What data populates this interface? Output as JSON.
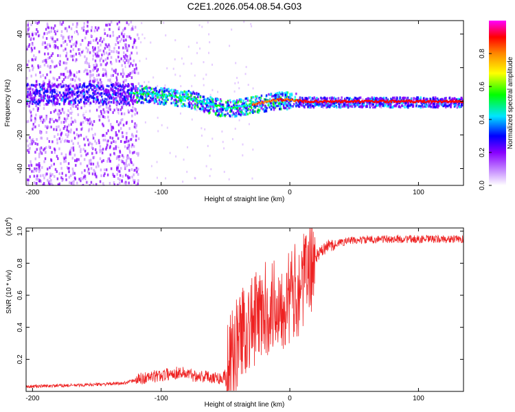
{
  "page": {
    "title": "C2E1.2026.054.08.54.G03"
  },
  "chart_data": [
    {
      "type": "heatmap",
      "title": "C2E1.2026.054.08.54.G03",
      "xlabel": "Height of straight line (km)",
      "ylabel": "Frequency (Hz)",
      "xlim": [
        -205,
        135
      ],
      "ylim": [
        -50,
        48
      ],
      "x_ticks": [
        -200,
        -100,
        0,
        100
      ],
      "y_ticks": [
        -40,
        -20,
        0,
        20,
        40
      ],
      "colorbar": {
        "label": "Normalized spectral amplitude",
        "range": [
          0,
          1
        ],
        "ticks": [
          0.0,
          0.2,
          0.4,
          0.6,
          0.8
        ],
        "colormap": [
          "#ffffff",
          "#cc99ff",
          "#8800ff",
          "#0000ff",
          "#00e5ff",
          "#00ff00",
          "#ffff00",
          "#ff8800",
          "#ff0000",
          "#ff00ff"
        ]
      },
      "frequency_trend": [
        {
          "x": -205,
          "f": 5
        },
        {
          "x": -150,
          "f": 5
        },
        {
          "x": -120,
          "f": 5
        },
        {
          "x": -100,
          "f": 4
        },
        {
          "x": -80,
          "f": 2
        },
        {
          "x": -60,
          "f": -2
        },
        {
          "x": -50,
          "f": -4
        },
        {
          "x": -40,
          "f": -3
        },
        {
          "x": -25,
          "f": -1
        },
        {
          "x": -10,
          "f": 1
        },
        {
          "x": 0,
          "f": 1
        },
        {
          "x": 10,
          "f": 0
        },
        {
          "x": 135,
          "f": 0
        }
      ]
    },
    {
      "type": "line",
      "xlabel": "Height of straight line (km)",
      "ylabel": "SNR (10 * v/v)",
      "y_scale_label": "(x10",
      "y_scale_exponent": "4",
      "xlim": [
        -205,
        135
      ],
      "ylim": [
        0,
        1.02
      ],
      "x_ticks": [
        -200,
        -100,
        0,
        100
      ],
      "y_ticks": [
        0.2,
        0.4,
        0.6,
        0.8,
        1.0
      ],
      "series": [
        {
          "name": "SNR",
          "color": "#ee2222",
          "points": [
            {
              "x": -205,
              "y": 0.03
            },
            {
              "x": -160,
              "y": 0.04
            },
            {
              "x": -130,
              "y": 0.05
            },
            {
              "x": -115,
              "y": 0.08
            },
            {
              "x": -100,
              "y": 0.1
            },
            {
              "x": -85,
              "y": 0.12
            },
            {
              "x": -75,
              "y": 0.1
            },
            {
              "x": -60,
              "y": 0.09
            },
            {
              "x": -52,
              "y": 0.08
            },
            {
              "x": -45,
              "y": 0.2
            },
            {
              "x": -38,
              "y": 0.38
            },
            {
              "x": -30,
              "y": 0.42
            },
            {
              "x": -20,
              "y": 0.5
            },
            {
              "x": -10,
              "y": 0.55
            },
            {
              "x": 0,
              "y": 0.58
            },
            {
              "x": 10,
              "y": 0.68
            },
            {
              "x": 20,
              "y": 0.84
            },
            {
              "x": 30,
              "y": 0.91
            },
            {
              "x": 45,
              "y": 0.94
            },
            {
              "x": 70,
              "y": 0.95
            },
            {
              "x": 100,
              "y": 0.95
            },
            {
              "x": 135,
              "y": 0.95
            }
          ]
        }
      ]
    }
  ]
}
